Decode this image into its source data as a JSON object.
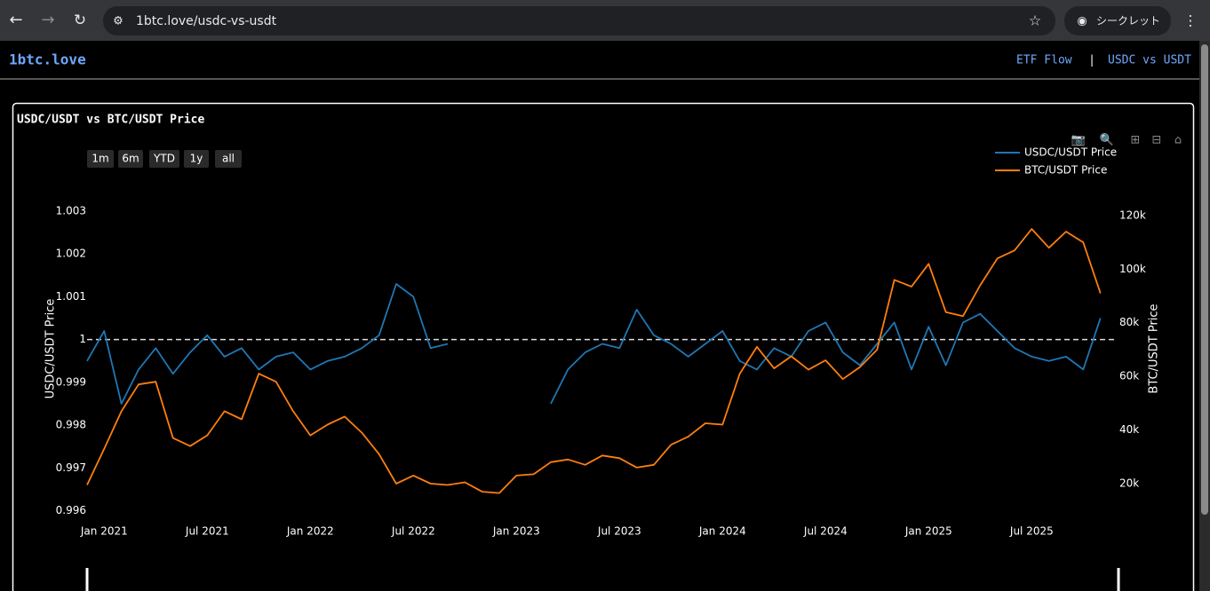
{
  "browser": {
    "url": "1btc.love/usdc-vs-usdt",
    "incognito_label": "シークレット"
  },
  "site": {
    "logo": "1btc.love",
    "nav": [
      "ETF Flow",
      "USDC vs USDT"
    ],
    "separator": "|"
  },
  "range_buttons": [
    "1m",
    "6m",
    "YTD",
    "1y",
    "all"
  ],
  "chart_data": {
    "type": "line",
    "title": "USDC/USDT vs BTC/USDT Price",
    "y_label": "USDC/USDT Price",
    "y2_label": "BTC/USDT Price",
    "x": [
      "2020-12",
      "2021-01",
      "2021-02",
      "2021-03",
      "2021-04",
      "2021-05",
      "2021-06",
      "2021-07",
      "2021-08",
      "2021-09",
      "2021-10",
      "2021-11",
      "2021-12",
      "2022-01",
      "2022-02",
      "2022-03",
      "2022-04",
      "2022-05",
      "2022-06",
      "2022-07",
      "2022-08",
      "2022-09",
      "2022-10",
      "2022-11",
      "2022-12",
      "2023-01",
      "2023-02",
      "2023-03",
      "2023-04",
      "2023-05",
      "2023-06",
      "2023-07",
      "2023-08",
      "2023-09",
      "2023-10",
      "2023-11",
      "2023-12",
      "2024-01",
      "2024-02",
      "2024-03",
      "2024-04",
      "2024-05",
      "2024-06",
      "2024-07",
      "2024-08",
      "2024-09",
      "2024-10",
      "2024-11",
      "2024-12",
      "2025-01",
      "2025-02",
      "2025-03",
      "2025-04",
      "2025-05",
      "2025-06",
      "2025-07",
      "2025-08",
      "2025-09",
      "2025-10",
      "2025-11"
    ],
    "series": [
      {
        "name": "USDC/USDT Price",
        "color": "#1f77b4",
        "axis": "y",
        "values": [
          0.9995,
          1.0002,
          0.9985,
          0.9993,
          0.9998,
          0.9992,
          0.9997,
          1.0001,
          0.9996,
          0.9998,
          0.9993,
          0.9996,
          0.9997,
          0.9993,
          0.9995,
          0.9996,
          0.9998,
          1.0001,
          1.0013,
          1.001,
          0.9998,
          0.9999,
          null,
          null,
          null,
          null,
          null,
          0.9985,
          0.9993,
          0.9997,
          0.9999,
          0.9998,
          1.0007,
          1.0001,
          0.9999,
          0.9996,
          0.9999,
          1.0002,
          0.9995,
          0.9993,
          0.9998,
          0.9996,
          1.0002,
          1.0004,
          0.9997,
          0.9994,
          0.9999,
          1.0004,
          0.9993,
          1.0003,
          0.9994,
          1.0004,
          1.0006,
          1.0002,
          0.9998,
          0.9996,
          0.9995,
          0.9996,
          0.9993,
          1.0005
        ]
      },
      {
        "name": "BTC/USDT Price",
        "color": "#ff7f0e",
        "axis": "y2",
        "values": [
          19500,
          33000,
          47000,
          57000,
          58000,
          37000,
          34000,
          38000,
          47000,
          44000,
          61000,
          58000,
          47000,
          38000,
          42000,
          45000,
          39000,
          31000,
          20000,
          23000,
          20000,
          19500,
          20500,
          17000,
          16500,
          23000,
          23500,
          28000,
          29000,
          27000,
          30500,
          29500,
          26000,
          27000,
          34500,
          37500,
          42500,
          42000,
          61000,
          71000,
          63000,
          67500,
          62500,
          66000,
          59000,
          63500,
          70000,
          96000,
          93500,
          102000,
          84000,
          82500,
          94000,
          104000,
          107000,
          115000,
          108000,
          114000,
          110000,
          91000
        ]
      }
    ],
    "xlim": [
      "2020-12",
      "2025-12"
    ],
    "xticks": [
      {
        "value": "2021-01",
        "label": "Jan 2021"
      },
      {
        "value": "2021-07",
        "label": "Jul 2021"
      },
      {
        "value": "2022-01",
        "label": "Jan 2022"
      },
      {
        "value": "2022-07",
        "label": "Jul 2022"
      },
      {
        "value": "2023-01",
        "label": "Jan 2023"
      },
      {
        "value": "2023-07",
        "label": "Jul 2023"
      },
      {
        "value": "2024-01",
        "label": "Jan 2024"
      },
      {
        "value": "2024-07",
        "label": "Jul 2024"
      },
      {
        "value": "2025-01",
        "label": "Jan 2025"
      },
      {
        "value": "2025-07",
        "label": "Jul 2025"
      }
    ],
    "ylim": [
      0.9957,
      1.00385
    ],
    "yticks": [
      0.996,
      0.997,
      0.998,
      0.999,
      1,
      1.001,
      1.002,
      1.003
    ],
    "y2lim": [
      5100,
      135200
    ],
    "y2ticks": [
      {
        "value": 20000,
        "label": "20k"
      },
      {
        "value": 40000,
        "label": "40k"
      },
      {
        "value": 60000,
        "label": "60k"
      },
      {
        "value": 80000,
        "label": "80k"
      },
      {
        "value": 100000,
        "label": "100k"
      },
      {
        "value": 120000,
        "label": "120k"
      }
    ],
    "reference_line": 1,
    "legend": "top-right"
  }
}
